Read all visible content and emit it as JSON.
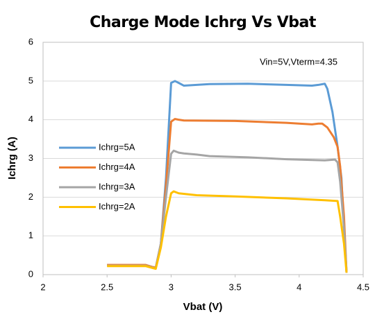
{
  "chart_data": {
    "type": "line",
    "title": "Charge Mode Ichrg Vs Vbat",
    "annotation": "Vin=5V,Vterm=4.35",
    "x_label": "Vbat (V)",
    "y_label": "Ichrg (A)",
    "xlim": [
      2,
      4.5
    ],
    "xticks": [
      2,
      2.5,
      3,
      3.5,
      4,
      4.5
    ],
    "ylim": [
      0,
      6
    ],
    "yticks": [
      0,
      1,
      2,
      3,
      4,
      5,
      6
    ],
    "grid": true,
    "legend": "left",
    "series": [
      {
        "name": "Ichrg=5A",
        "color": "#5b9bd5",
        "x": [
          2.5,
          2.8,
          2.85,
          2.88,
          2.92,
          2.96,
          3.0,
          3.03,
          3.06,
          3.1,
          3.3,
          3.6,
          3.9,
          4.1,
          4.15,
          4.2,
          4.22,
          4.26,
          4.3,
          4.33,
          4.35,
          4.37
        ],
        "values": [
          0.25,
          0.25,
          0.2,
          0.18,
          0.8,
          2.5,
          4.95,
          5.0,
          4.95,
          4.88,
          4.92,
          4.93,
          4.9,
          4.88,
          4.9,
          4.93,
          4.8,
          4.2,
          3.3,
          2.5,
          1.2,
          0.05
        ]
      },
      {
        "name": "Ichrg=4A",
        "color": "#ed7d31",
        "x": [
          2.5,
          2.8,
          2.85,
          2.88,
          2.92,
          2.96,
          3.0,
          3.03,
          3.06,
          3.1,
          3.5,
          3.9,
          4.1,
          4.15,
          4.18,
          4.22,
          4.27,
          4.3,
          4.32,
          4.35,
          4.37
        ],
        "values": [
          0.25,
          0.25,
          0.2,
          0.18,
          0.8,
          2.3,
          3.95,
          4.02,
          4.0,
          3.98,
          3.97,
          3.92,
          3.88,
          3.9,
          3.9,
          3.8,
          3.55,
          3.3,
          2.8,
          1.5,
          0.05
        ]
      },
      {
        "name": "Ichrg=3A",
        "color": "#a5a5a5",
        "x": [
          2.5,
          2.8,
          2.88,
          2.92,
          2.96,
          3.0,
          3.02,
          3.06,
          3.1,
          3.2,
          3.3,
          3.6,
          3.9,
          4.2,
          4.28,
          4.3,
          4.32,
          4.35,
          4.37
        ],
        "values": [
          0.23,
          0.23,
          0.16,
          0.8,
          2.0,
          3.12,
          3.2,
          3.15,
          3.13,
          3.1,
          3.06,
          3.03,
          2.98,
          2.95,
          2.97,
          2.9,
          2.4,
          1.2,
          0.05
        ]
      },
      {
        "name": "Ichrg=2A",
        "color": "#ffc000",
        "x": [
          2.5,
          2.8,
          2.88,
          2.92,
          2.96,
          3.0,
          3.02,
          3.06,
          3.2,
          3.5,
          3.9,
          4.2,
          4.3,
          4.32,
          4.35,
          4.37
        ],
        "values": [
          0.22,
          0.22,
          0.15,
          0.7,
          1.5,
          2.1,
          2.15,
          2.1,
          2.05,
          2.02,
          1.97,
          1.92,
          1.9,
          1.5,
          0.8,
          0.05
        ]
      }
    ]
  }
}
